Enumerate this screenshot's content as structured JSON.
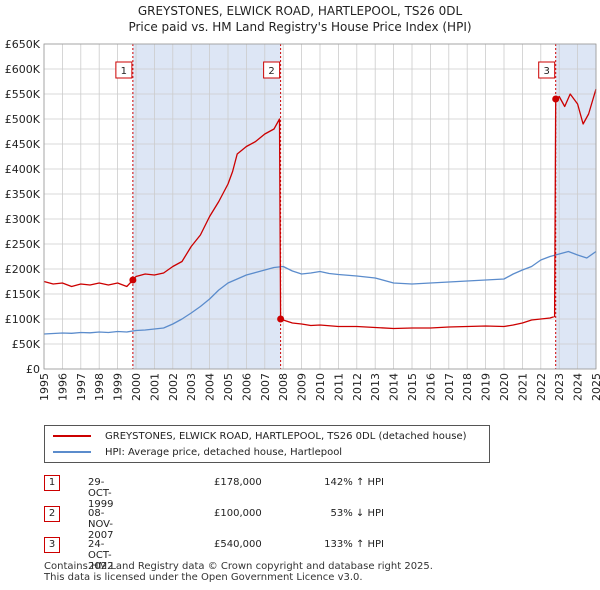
{
  "title_line1": "GREYSTONES, ELWICK ROAD, HARTLEPOOL, TS26 0DL",
  "title_line2": "Price paid vs. HM Land Registry's House Price Index (HPI)",
  "colors": {
    "property": "#cc0000",
    "hpi": "#5b8ccc",
    "shade": "#dde6f5",
    "grid": "#cccccc",
    "marker_border": "#cc0000"
  },
  "chart_data": {
    "type": "line",
    "title": "Price paid vs. HM Land Registry's House Price Index (HPI)",
    "xlabel": "",
    "ylabel": "",
    "xlim": [
      1995,
      2025
    ],
    "ylim": [
      0,
      650000
    ],
    "x_ticks": [
      1995,
      1996,
      1997,
      1998,
      1999,
      2000,
      2001,
      2002,
      2003,
      2004,
      2005,
      2006,
      2007,
      2008,
      2009,
      2010,
      2011,
      2012,
      2013,
      2014,
      2015,
      2016,
      2017,
      2018,
      2019,
      2020,
      2021,
      2022,
      2023,
      2024,
      2025
    ],
    "y_ticks": [
      0,
      50000,
      100000,
      150000,
      200000,
      250000,
      300000,
      350000,
      400000,
      450000,
      500000,
      550000,
      600000,
      650000
    ],
    "y_tick_labels": [
      "£0",
      "£50K",
      "£100K",
      "£150K",
      "£200K",
      "£250K",
      "£300K",
      "£350K",
      "£400K",
      "£450K",
      "£500K",
      "£550K",
      "£600K",
      "£650K"
    ],
    "shaded_ranges": [
      [
        1999.83,
        2007.86
      ],
      [
        2022.81,
        2025
      ]
    ],
    "series": [
      {
        "name": "GREYSTONES, ELWICK ROAD, HARTLEPOOL, TS26 0DL (detached house)",
        "color": "#cc0000",
        "x": [
          1995,
          1995.5,
          1996,
          1996.5,
          1997,
          1997.5,
          1998,
          1998.5,
          1999,
          1999.5,
          1999.83,
          2000,
          2000.5,
          2001,
          2001.5,
          2002,
          2002.5,
          2003,
          2003.5,
          2004,
          2004.5,
          2005,
          2005.25,
          2005.5,
          2006,
          2006.5,
          2007,
          2007.5,
          2007.8,
          2007.86,
          2008,
          2008.5,
          2009,
          2009.5,
          2010,
          2011,
          2012,
          2013,
          2014,
          2015,
          2016,
          2017,
          2018,
          2019,
          2020,
          2020.5,
          2021,
          2021.5,
          2022,
          2022.5,
          2022.75,
          2022.81,
          2023,
          2023.3,
          2023.6,
          2024,
          2024.3,
          2024.6,
          2025
        ],
        "values": [
          175000,
          170000,
          172000,
          165000,
          170000,
          168000,
          172000,
          168000,
          172000,
          165000,
          178000,
          185000,
          190000,
          188000,
          192000,
          205000,
          215000,
          245000,
          268000,
          305000,
          335000,
          370000,
          395000,
          430000,
          445000,
          455000,
          470000,
          480000,
          500000,
          100000,
          98000,
          92000,
          90000,
          87000,
          88000,
          85000,
          85000,
          83000,
          81000,
          82000,
          82000,
          84000,
          85000,
          86000,
          85000,
          88000,
          92000,
          98000,
          100000,
          102000,
          105000,
          540000,
          545000,
          525000,
          550000,
          530000,
          490000,
          510000,
          560000
        ]
      },
      {
        "name": "HPI: Average price, detached house, Hartlepool",
        "color": "#5b8ccc",
        "x": [
          1995,
          1995.5,
          1996,
          1996.5,
          1997,
          1997.5,
          1998,
          1998.5,
          1999,
          1999.5,
          2000,
          2000.5,
          2001,
          2001.5,
          2002,
          2002.5,
          2003,
          2003.5,
          2004,
          2004.5,
          2005,
          2005.5,
          2006,
          2006.5,
          2007,
          2007.5,
          2008,
          2008.5,
          2009,
          2009.5,
          2010,
          2010.5,
          2011,
          2012,
          2013,
          2014,
          2015,
          2016,
          2017,
          2018,
          2019,
          2020,
          2020.5,
          2021,
          2021.5,
          2022,
          2022.5,
          2023,
          2023.5,
          2024,
          2024.5,
          2025
        ],
        "values": [
          70000,
          71000,
          72000,
          71500,
          73000,
          72500,
          74000,
          73000,
          75000,
          74000,
          77000,
          78000,
          80000,
          82000,
          90000,
          100000,
          112000,
          125000,
          140000,
          158000,
          172000,
          180000,
          188000,
          193000,
          198000,
          203000,
          205000,
          196000,
          190000,
          192000,
          195000,
          191000,
          189000,
          186000,
          182000,
          172000,
          170000,
          172000,
          174000,
          176000,
          178000,
          180000,
          190000,
          198000,
          205000,
          218000,
          225000,
          230000,
          235000,
          228000,
          222000,
          235000
        ]
      }
    ],
    "markers": [
      {
        "label": "1",
        "x": 1999.83,
        "value": 178000
      },
      {
        "label": "2",
        "x": 2007.86,
        "value": 100000
      },
      {
        "label": "3",
        "x": 2022.81,
        "value": 540000
      }
    ],
    "legend": [
      "GREYSTONES, ELWICK ROAD, HARTLEPOOL, TS26 0DL (detached house)",
      "HPI: Average price, detached house, Hartlepool"
    ]
  },
  "transactions": [
    {
      "num": "1",
      "date": "29-OCT-1999",
      "price": "£178,000",
      "hpi": "142% ↑ HPI"
    },
    {
      "num": "2",
      "date": "08-NOV-2007",
      "price": "£100,000",
      "hpi": "53% ↓ HPI"
    },
    {
      "num": "3",
      "date": "24-OCT-2022",
      "price": "£540,000",
      "hpi": "133% ↑ HPI"
    }
  ],
  "footer_line1": "Contains HM Land Registry data © Crown copyright and database right 2025.",
  "footer_line2": "This data is licensed under the Open Government Licence v3.0."
}
